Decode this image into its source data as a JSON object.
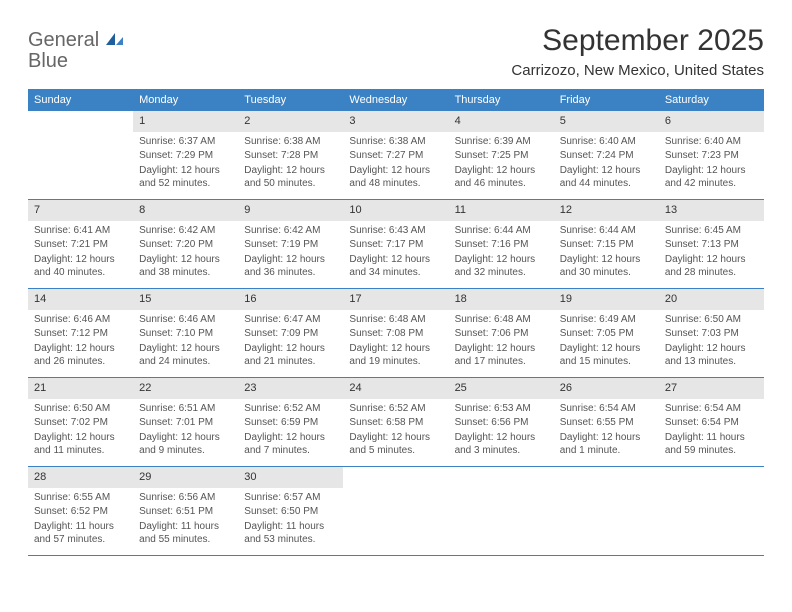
{
  "logo": {
    "word1": "General",
    "word2": "Blue"
  },
  "colors": {
    "brand": "#3b82c4",
    "dayhead_bg": "#3b82c4",
    "dayhead_text": "#ffffff",
    "daynum_bg": "#e6e6e6",
    "border": "#3b82c4",
    "text": "#555555",
    "title": "#333333",
    "background": "#ffffff"
  },
  "typography": {
    "month_title_fontsize": 30,
    "location_fontsize": 15,
    "dayhead_fontsize": 11,
    "daynum_fontsize": 11,
    "body_fontsize": 10
  },
  "header": {
    "month_title": "September 2025",
    "location": "Carrizozo, New Mexico, United States"
  },
  "day_names": [
    "Sunday",
    "Monday",
    "Tuesday",
    "Wednesday",
    "Thursday",
    "Friday",
    "Saturday"
  ],
  "weeks": [
    [
      null,
      {
        "n": "1",
        "sunrise": "Sunrise: 6:37 AM",
        "sunset": "Sunset: 7:29 PM",
        "daylight": "Daylight: 12 hours and 52 minutes."
      },
      {
        "n": "2",
        "sunrise": "Sunrise: 6:38 AM",
        "sunset": "Sunset: 7:28 PM",
        "daylight": "Daylight: 12 hours and 50 minutes."
      },
      {
        "n": "3",
        "sunrise": "Sunrise: 6:38 AM",
        "sunset": "Sunset: 7:27 PM",
        "daylight": "Daylight: 12 hours and 48 minutes."
      },
      {
        "n": "4",
        "sunrise": "Sunrise: 6:39 AM",
        "sunset": "Sunset: 7:25 PM",
        "daylight": "Daylight: 12 hours and 46 minutes."
      },
      {
        "n": "5",
        "sunrise": "Sunrise: 6:40 AM",
        "sunset": "Sunset: 7:24 PM",
        "daylight": "Daylight: 12 hours and 44 minutes."
      },
      {
        "n": "6",
        "sunrise": "Sunrise: 6:40 AM",
        "sunset": "Sunset: 7:23 PM",
        "daylight": "Daylight: 12 hours and 42 minutes."
      }
    ],
    [
      {
        "n": "7",
        "sunrise": "Sunrise: 6:41 AM",
        "sunset": "Sunset: 7:21 PM",
        "daylight": "Daylight: 12 hours and 40 minutes."
      },
      {
        "n": "8",
        "sunrise": "Sunrise: 6:42 AM",
        "sunset": "Sunset: 7:20 PM",
        "daylight": "Daylight: 12 hours and 38 minutes."
      },
      {
        "n": "9",
        "sunrise": "Sunrise: 6:42 AM",
        "sunset": "Sunset: 7:19 PM",
        "daylight": "Daylight: 12 hours and 36 minutes."
      },
      {
        "n": "10",
        "sunrise": "Sunrise: 6:43 AM",
        "sunset": "Sunset: 7:17 PM",
        "daylight": "Daylight: 12 hours and 34 minutes."
      },
      {
        "n": "11",
        "sunrise": "Sunrise: 6:44 AM",
        "sunset": "Sunset: 7:16 PM",
        "daylight": "Daylight: 12 hours and 32 minutes."
      },
      {
        "n": "12",
        "sunrise": "Sunrise: 6:44 AM",
        "sunset": "Sunset: 7:15 PM",
        "daylight": "Daylight: 12 hours and 30 minutes."
      },
      {
        "n": "13",
        "sunrise": "Sunrise: 6:45 AM",
        "sunset": "Sunset: 7:13 PM",
        "daylight": "Daylight: 12 hours and 28 minutes."
      }
    ],
    [
      {
        "n": "14",
        "sunrise": "Sunrise: 6:46 AM",
        "sunset": "Sunset: 7:12 PM",
        "daylight": "Daylight: 12 hours and 26 minutes."
      },
      {
        "n": "15",
        "sunrise": "Sunrise: 6:46 AM",
        "sunset": "Sunset: 7:10 PM",
        "daylight": "Daylight: 12 hours and 24 minutes."
      },
      {
        "n": "16",
        "sunrise": "Sunrise: 6:47 AM",
        "sunset": "Sunset: 7:09 PM",
        "daylight": "Daylight: 12 hours and 21 minutes."
      },
      {
        "n": "17",
        "sunrise": "Sunrise: 6:48 AM",
        "sunset": "Sunset: 7:08 PM",
        "daylight": "Daylight: 12 hours and 19 minutes."
      },
      {
        "n": "18",
        "sunrise": "Sunrise: 6:48 AM",
        "sunset": "Sunset: 7:06 PM",
        "daylight": "Daylight: 12 hours and 17 minutes."
      },
      {
        "n": "19",
        "sunrise": "Sunrise: 6:49 AM",
        "sunset": "Sunset: 7:05 PM",
        "daylight": "Daylight: 12 hours and 15 minutes."
      },
      {
        "n": "20",
        "sunrise": "Sunrise: 6:50 AM",
        "sunset": "Sunset: 7:03 PM",
        "daylight": "Daylight: 12 hours and 13 minutes."
      }
    ],
    [
      {
        "n": "21",
        "sunrise": "Sunrise: 6:50 AM",
        "sunset": "Sunset: 7:02 PM",
        "daylight": "Daylight: 12 hours and 11 minutes."
      },
      {
        "n": "22",
        "sunrise": "Sunrise: 6:51 AM",
        "sunset": "Sunset: 7:01 PM",
        "daylight": "Daylight: 12 hours and 9 minutes."
      },
      {
        "n": "23",
        "sunrise": "Sunrise: 6:52 AM",
        "sunset": "Sunset: 6:59 PM",
        "daylight": "Daylight: 12 hours and 7 minutes."
      },
      {
        "n": "24",
        "sunrise": "Sunrise: 6:52 AM",
        "sunset": "Sunset: 6:58 PM",
        "daylight": "Daylight: 12 hours and 5 minutes."
      },
      {
        "n": "25",
        "sunrise": "Sunrise: 6:53 AM",
        "sunset": "Sunset: 6:56 PM",
        "daylight": "Daylight: 12 hours and 3 minutes."
      },
      {
        "n": "26",
        "sunrise": "Sunrise: 6:54 AM",
        "sunset": "Sunset: 6:55 PM",
        "daylight": "Daylight: 12 hours and 1 minute."
      },
      {
        "n": "27",
        "sunrise": "Sunrise: 6:54 AM",
        "sunset": "Sunset: 6:54 PM",
        "daylight": "Daylight: 11 hours and 59 minutes."
      }
    ],
    [
      {
        "n": "28",
        "sunrise": "Sunrise: 6:55 AM",
        "sunset": "Sunset: 6:52 PM",
        "daylight": "Daylight: 11 hours and 57 minutes."
      },
      {
        "n": "29",
        "sunrise": "Sunrise: 6:56 AM",
        "sunset": "Sunset: 6:51 PM",
        "daylight": "Daylight: 11 hours and 55 minutes."
      },
      {
        "n": "30",
        "sunrise": "Sunrise: 6:57 AM",
        "sunset": "Sunset: 6:50 PM",
        "daylight": "Daylight: 11 hours and 53 minutes."
      },
      null,
      null,
      null,
      null
    ]
  ]
}
